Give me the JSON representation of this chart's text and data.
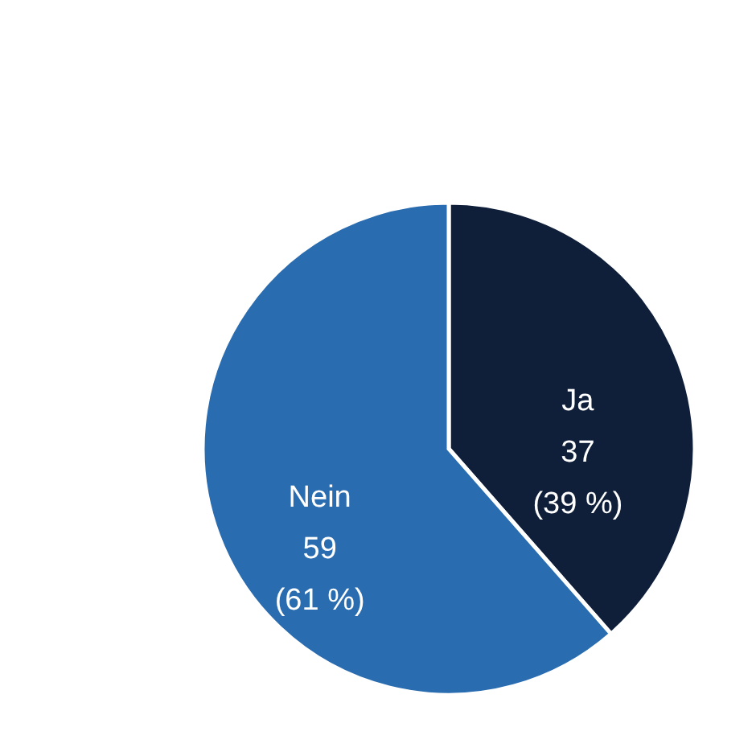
{
  "chart_data": {
    "type": "pie",
    "categories": [
      "Ja",
      "Nein"
    ],
    "values": [
      37,
      59
    ],
    "colors": [
      "#0f1f3a",
      "#2a6cb0"
    ],
    "value_labels": [
      "37\n(39 %)",
      "59\n(61 %)"
    ],
    "legend": false
  }
}
